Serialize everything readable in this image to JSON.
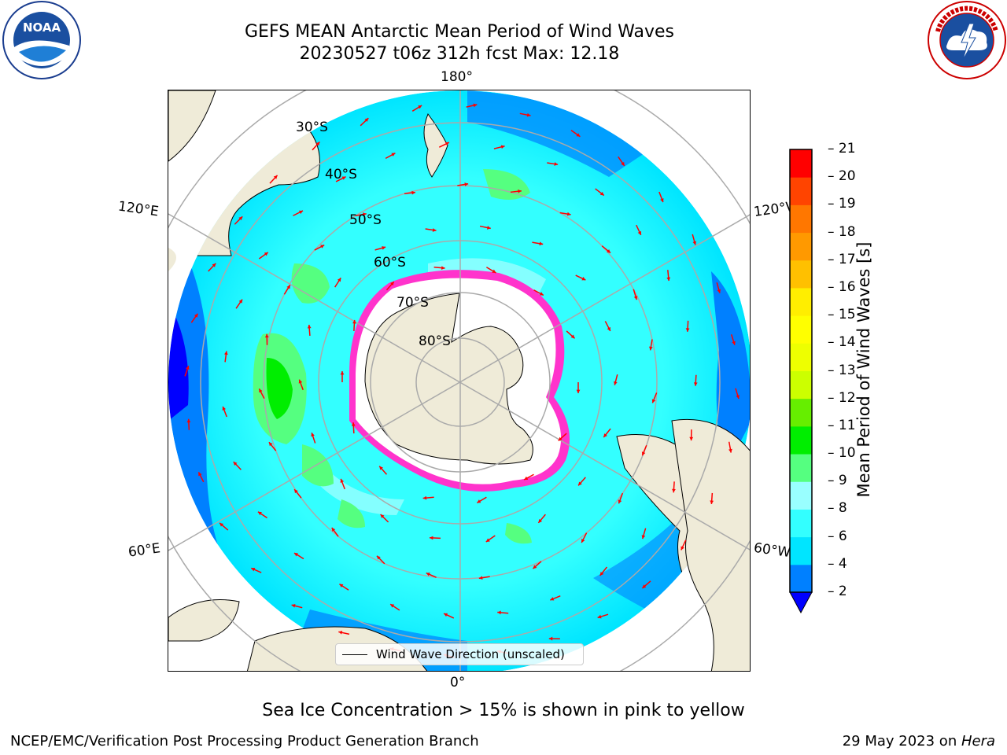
{
  "header": {
    "title_line1": "GEFS MEAN Antarctic Mean Period of Wind Waves",
    "title_line2": "20230527 t06z 312h fcst   Max: 12.18"
  },
  "logos": {
    "left": {
      "name": "noaa-logo",
      "text": "NOAA",
      "ring_text": "NATIONAL OCEANIC AND ATMOSPHERIC ADMINISTRATION · U.S. DEPARTMENT OF COMMERCE"
    },
    "right": {
      "name": "nws-logo",
      "ring_text": "NATIONAL WEATHER SERVICE"
    }
  },
  "map": {
    "longitude_labels": [
      "180°",
      "120°E",
      "120°W",
      "60°E",
      "60°W",
      "0°"
    ],
    "latitude_labels": [
      "30°S",
      "40°S",
      "50°S",
      "60°S",
      "70°S",
      "80°S"
    ],
    "legend": "Wind Wave Direction (unscaled)",
    "colors": {
      "land": "#efebd8",
      "ocean_bg": "#33ffff",
      "ocean_low": "#0080ff",
      "ice": "#ffffff",
      "ice_edge": "#ff33cc",
      "arrow": "#ff0000"
    }
  },
  "colorbar": {
    "label": "Mean Period of Wind Waves [s]",
    "ticks": [
      "2",
      "4",
      "6",
      "8",
      "9",
      "10",
      "11",
      "12",
      "13",
      "14",
      "15",
      "16",
      "17",
      "18",
      "19",
      "20",
      "21"
    ],
    "colors": [
      "#0080ff",
      "#00e5ff",
      "#33ffff",
      "#99ffff",
      "#55ff80",
      "#00ee00",
      "#66ee00",
      "#ccff00",
      "#eeff00",
      "#ffff00",
      "#ffee00",
      "#ffc000",
      "#ff9900",
      "#ff7700",
      "#ff4400",
      "#ff0000"
    ],
    "extend_color": "#0000ff"
  },
  "note": "Sea Ice Concentration > 15% is shown in pink to yellow",
  "footer": {
    "left": "NCEP/EMC/Verification Post Processing Product Generation Branch",
    "right_prefix": "29 May 2023 on ",
    "right_machine": "Hera"
  }
}
